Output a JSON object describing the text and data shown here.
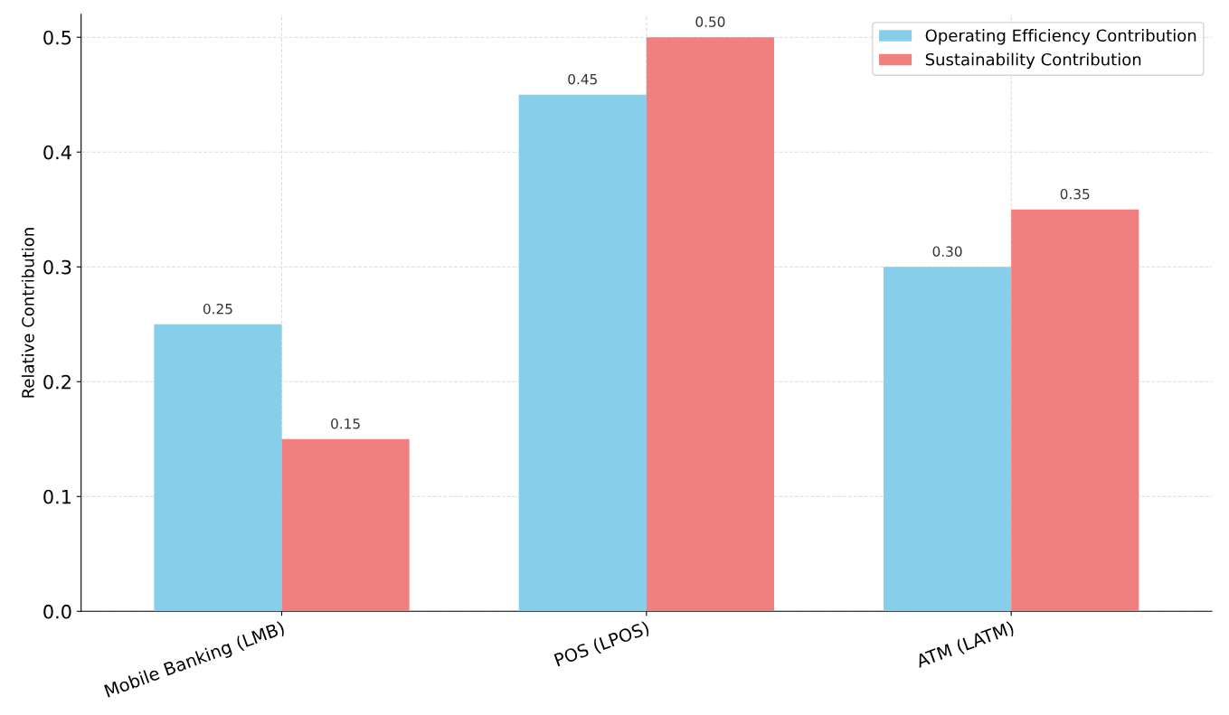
{
  "chart_data": {
    "type": "bar",
    "categories": [
      "Mobile Banking (LMB)",
      "POS (LPOS)",
      "ATM (LATM)"
    ],
    "series": [
      {
        "name": "Operating Efficiency Contribution",
        "color": "#87ceeb",
        "values": [
          0.25,
          0.45,
          0.3
        ],
        "value_labels": [
          "0.25",
          "0.45",
          "0.30"
        ]
      },
      {
        "name": "Sustainability Contribution",
        "color": "#f08080",
        "values": [
          0.15,
          0.5,
          0.35
        ],
        "value_labels": [
          "0.15",
          "0.50",
          "0.35"
        ]
      }
    ],
    "ylabel": "Relative Contribution",
    "ylim": [
      0,
      0.52
    ],
    "yticks": [
      {
        "value": 0,
        "label": "0.0"
      },
      {
        "value": 0.1,
        "label": "0.1"
      },
      {
        "value": 0.2,
        "label": "0.2"
      },
      {
        "value": 0.3,
        "label": "0.3"
      },
      {
        "value": 0.4,
        "label": "0.4"
      },
      {
        "value": 0.5,
        "label": "0.5"
      }
    ],
    "grid": true,
    "legend": "top right"
  }
}
